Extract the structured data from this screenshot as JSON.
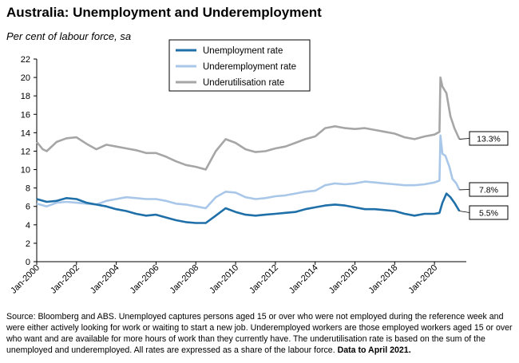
{
  "title": "Australia: Unemployment and Underemployment",
  "subtitle": "Per cent of labour force, sa",
  "source": {
    "text": "Source: Bloomberg and ABS. Unemployed captures persons aged 15 or over who were not employed during the reference week and were either actively looking for work or waiting to start a new job.  Underemployed workers are those employed workers aged 15 or over who want and are available for more hours of work than they currently have.  The underutilisation rate is based on the sum of the unemployed and underemployed. All rates are expressed as a share of the labour force.",
    "bold": "Data to April 2021."
  },
  "chart_data": {
    "type": "line",
    "title": "Australia: Unemployment and Underemployment",
    "ylabel": "Per cent of labour force, sa",
    "ylim": [
      0,
      22
    ],
    "yticks": [
      0,
      2,
      4,
      6,
      8,
      10,
      12,
      14,
      16,
      18,
      20,
      22
    ],
    "xlim": [
      2000.0,
      2021.6
    ],
    "xticks": [
      {
        "x": 2000,
        "label": "Jan-2000"
      },
      {
        "x": 2002,
        "label": "Jan-2002"
      },
      {
        "x": 2004,
        "label": "Jan-2004"
      },
      {
        "x": 2006,
        "label": "Jan-2006"
      },
      {
        "x": 2008,
        "label": "Jan-2008"
      },
      {
        "x": 2010,
        "label": "Jan-2010"
      },
      {
        "x": 2012,
        "label": "Jan-2012"
      },
      {
        "x": 2014,
        "label": "Jan-2014"
      },
      {
        "x": 2016,
        "label": "Jan-2016"
      },
      {
        "x": 2018,
        "label": "Jan-2018"
      },
      {
        "x": 2020,
        "label": "Jan-2020"
      }
    ],
    "grid": false,
    "legend_position": "top-center",
    "series": [
      {
        "name": "Unemployment rate",
        "color": "#1f6fa8",
        "end_label": "5.5%",
        "points": [
          [
            2000.0,
            6.8
          ],
          [
            2000.5,
            6.5
          ],
          [
            2001.0,
            6.6
          ],
          [
            2001.5,
            6.9
          ],
          [
            2002.0,
            6.8
          ],
          [
            2002.5,
            6.4
          ],
          [
            2003.0,
            6.2
          ],
          [
            2003.5,
            6.0
          ],
          [
            2004.0,
            5.7
          ],
          [
            2004.5,
            5.5
          ],
          [
            2005.0,
            5.2
          ],
          [
            2005.5,
            5.0
          ],
          [
            2006.0,
            5.1
          ],
          [
            2006.5,
            4.8
          ],
          [
            2007.0,
            4.5
          ],
          [
            2007.5,
            4.3
          ],
          [
            2008.0,
            4.2
          ],
          [
            2008.5,
            4.2
          ],
          [
            2009.0,
            5.0
          ],
          [
            2009.5,
            5.8
          ],
          [
            2010.0,
            5.4
          ],
          [
            2010.5,
            5.1
          ],
          [
            2011.0,
            5.0
          ],
          [
            2011.5,
            5.1
          ],
          [
            2012.0,
            5.2
          ],
          [
            2012.5,
            5.3
          ],
          [
            2013.0,
            5.4
          ],
          [
            2013.5,
            5.7
          ],
          [
            2014.0,
            5.9
          ],
          [
            2014.5,
            6.1
          ],
          [
            2015.0,
            6.2
          ],
          [
            2015.5,
            6.1
          ],
          [
            2016.0,
            5.9
          ],
          [
            2016.5,
            5.7
          ],
          [
            2017.0,
            5.7
          ],
          [
            2017.5,
            5.6
          ],
          [
            2018.0,
            5.5
          ],
          [
            2018.5,
            5.2
          ],
          [
            2019.0,
            5.0
          ],
          [
            2019.5,
            5.2
          ],
          [
            2020.0,
            5.2
          ],
          [
            2020.25,
            5.3
          ],
          [
            2020.4,
            6.4
          ],
          [
            2020.6,
            7.4
          ],
          [
            2020.8,
            7.0
          ],
          [
            2021.0,
            6.4
          ],
          [
            2021.25,
            5.5
          ]
        ]
      },
      {
        "name": "Underemployment rate",
        "color": "#a9c7e8",
        "end_label": "7.8%",
        "points": [
          [
            2000.0,
            6.3
          ],
          [
            2000.5,
            6.0
          ],
          [
            2001.0,
            6.4
          ],
          [
            2001.5,
            6.5
          ],
          [
            2002.0,
            6.4
          ],
          [
            2002.5,
            6.3
          ],
          [
            2003.0,
            6.2
          ],
          [
            2003.5,
            6.6
          ],
          [
            2004.0,
            6.8
          ],
          [
            2004.5,
            7.0
          ],
          [
            2005.0,
            6.9
          ],
          [
            2005.5,
            6.8
          ],
          [
            2006.0,
            6.8
          ],
          [
            2006.5,
            6.6
          ],
          [
            2007.0,
            6.3
          ],
          [
            2007.5,
            6.2
          ],
          [
            2008.0,
            6.0
          ],
          [
            2008.5,
            5.8
          ],
          [
            2009.0,
            7.0
          ],
          [
            2009.5,
            7.6
          ],
          [
            2010.0,
            7.5
          ],
          [
            2010.5,
            7.0
          ],
          [
            2011.0,
            6.8
          ],
          [
            2011.5,
            6.9
          ],
          [
            2012.0,
            7.1
          ],
          [
            2012.5,
            7.2
          ],
          [
            2013.0,
            7.4
          ],
          [
            2013.5,
            7.6
          ],
          [
            2014.0,
            7.7
          ],
          [
            2014.5,
            8.3
          ],
          [
            2015.0,
            8.5
          ],
          [
            2015.5,
            8.4
          ],
          [
            2016.0,
            8.5
          ],
          [
            2016.5,
            8.7
          ],
          [
            2017.0,
            8.6
          ],
          [
            2017.5,
            8.5
          ],
          [
            2018.0,
            8.4
          ],
          [
            2018.5,
            8.3
          ],
          [
            2019.0,
            8.3
          ],
          [
            2019.5,
            8.4
          ],
          [
            2020.0,
            8.6
          ],
          [
            2020.25,
            8.8
          ],
          [
            2020.3,
            13.7
          ],
          [
            2020.4,
            11.7
          ],
          [
            2020.55,
            11.5
          ],
          [
            2020.75,
            10.3
          ],
          [
            2020.9,
            9.0
          ],
          [
            2021.1,
            8.5
          ],
          [
            2021.25,
            7.8
          ]
        ]
      },
      {
        "name": "Underutilisation rate",
        "color": "#a6a6a6",
        "end_label": "13.3%",
        "points": [
          [
            2000.0,
            13.0
          ],
          [
            2000.3,
            12.2
          ],
          [
            2000.5,
            12.0
          ],
          [
            2001.0,
            13.0
          ],
          [
            2001.5,
            13.4
          ],
          [
            2002.0,
            13.5
          ],
          [
            2002.5,
            12.8
          ],
          [
            2003.0,
            12.2
          ],
          [
            2003.5,
            12.7
          ],
          [
            2004.0,
            12.5
          ],
          [
            2004.5,
            12.3
          ],
          [
            2005.0,
            12.1
          ],
          [
            2005.5,
            11.8
          ],
          [
            2006.0,
            11.8
          ],
          [
            2006.5,
            11.4
          ],
          [
            2007.0,
            10.9
          ],
          [
            2007.5,
            10.5
          ],
          [
            2008.0,
            10.3
          ],
          [
            2008.5,
            10.0
          ],
          [
            2009.0,
            12.0
          ],
          [
            2009.5,
            13.3
          ],
          [
            2010.0,
            12.9
          ],
          [
            2010.5,
            12.2
          ],
          [
            2011.0,
            11.9
          ],
          [
            2011.5,
            12.0
          ],
          [
            2012.0,
            12.3
          ],
          [
            2012.5,
            12.5
          ],
          [
            2013.0,
            12.9
          ],
          [
            2013.5,
            13.3
          ],
          [
            2014.0,
            13.6
          ],
          [
            2014.5,
            14.5
          ],
          [
            2015.0,
            14.7
          ],
          [
            2015.5,
            14.5
          ],
          [
            2016.0,
            14.4
          ],
          [
            2016.5,
            14.5
          ],
          [
            2017.0,
            14.3
          ],
          [
            2017.5,
            14.1
          ],
          [
            2018.0,
            13.9
          ],
          [
            2018.5,
            13.5
          ],
          [
            2019.0,
            13.3
          ],
          [
            2019.5,
            13.6
          ],
          [
            2020.0,
            13.8
          ],
          [
            2020.25,
            14.1
          ],
          [
            2020.3,
            20.0
          ],
          [
            2020.4,
            19.0
          ],
          [
            2020.6,
            18.3
          ],
          [
            2020.8,
            15.8
          ],
          [
            2021.0,
            14.5
          ],
          [
            2021.25,
            13.3
          ]
        ]
      }
    ]
  }
}
